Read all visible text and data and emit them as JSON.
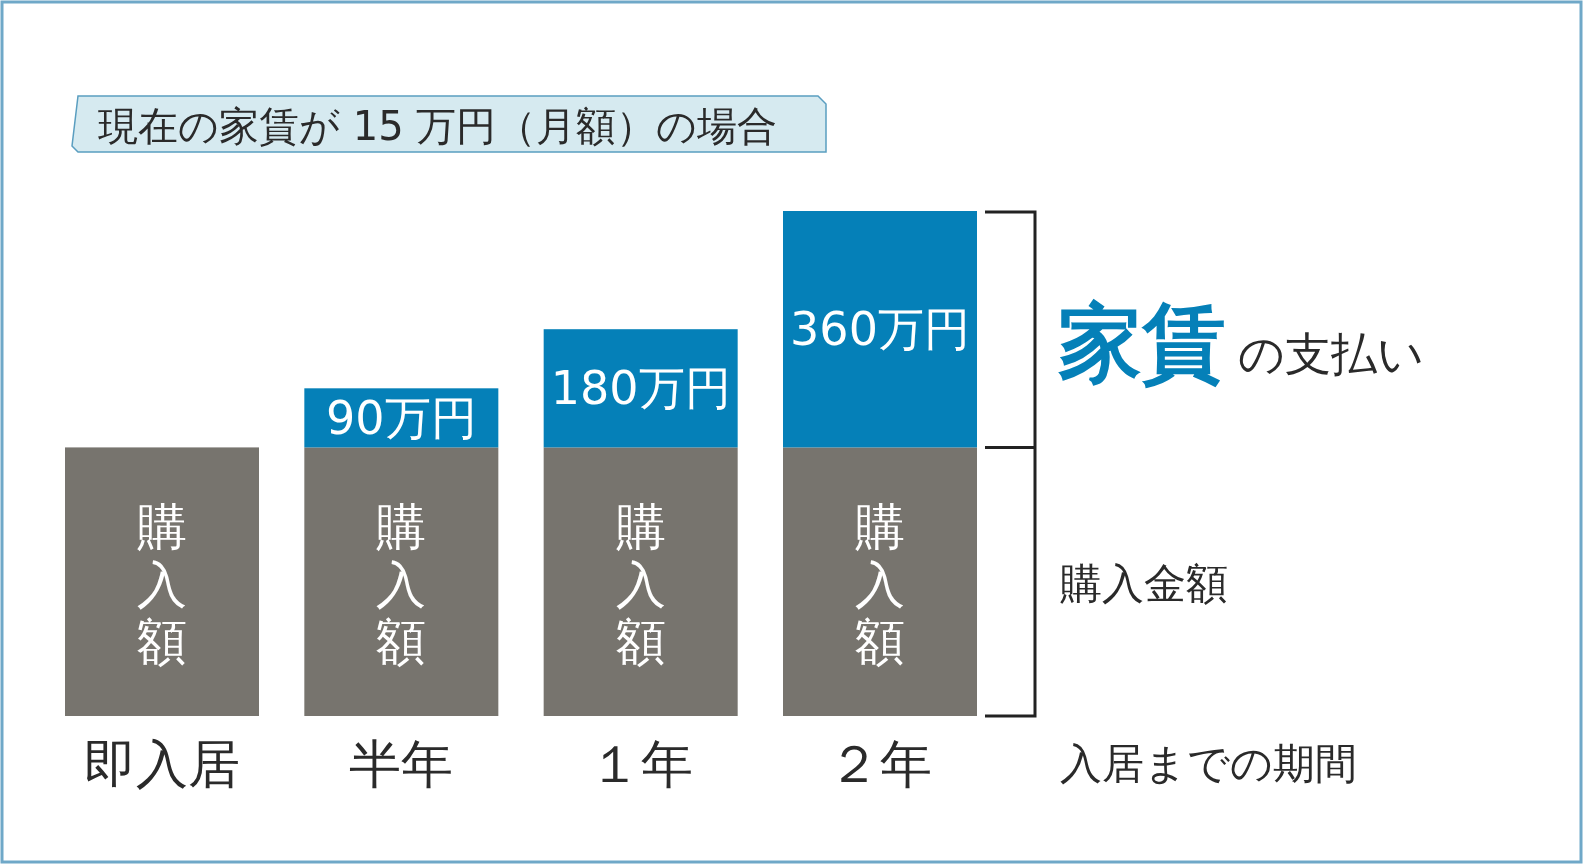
{
  "chart_data": {
    "type": "bar",
    "stacked": true,
    "title": "現在の家賃が 15 万円（月額）の場合",
    "xlabel": "入居までの期間",
    "categories": [
      "即入居",
      "半年",
      "１年",
      "２年"
    ],
    "series": [
      {
        "name": "購入額",
        "color": "#77746e",
        "values": [
          409,
          409,
          409,
          409
        ]
      },
      {
        "color": "#0580b8",
        "values": [
          null,
          90,
          180,
          360
        ],
        "value_labels": [
          null,
          "90万円",
          "180万円",
          "360万円"
        ]
      }
    ],
    "annotations": [
      "家賃",
      "の支払い",
      "購入金額"
    ]
  }
}
